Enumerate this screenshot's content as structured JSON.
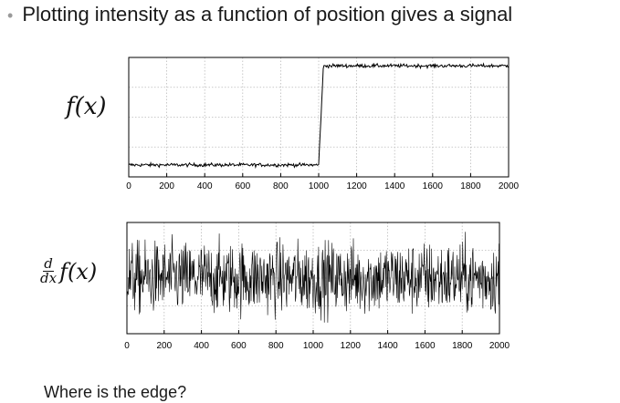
{
  "slide": {
    "bullet_text": "Plotting intensity as a function of position gives a signal",
    "question": "Where is the edge?"
  },
  "chart_data": [
    {
      "type": "line",
      "ylabel": "f(x)",
      "xlim": [
        0,
        2000
      ],
      "xticks": [
        "0",
        "200",
        "400",
        "600",
        "800",
        "1000",
        "1200",
        "1400",
        "1600",
        "1800",
        "2000"
      ],
      "grid": true,
      "series": [
        {
          "kind": "step",
          "edge_at": 1000,
          "low": 0.1,
          "high": 0.93,
          "noise": 0.025
        }
      ]
    },
    {
      "type": "line",
      "ylabel": "d/dx f(x)",
      "xlim": [
        0,
        2000
      ],
      "xticks": [
        "0",
        "200",
        "400",
        "600",
        "800",
        "1000",
        "1200",
        "1400",
        "1600",
        "1800",
        "2000"
      ],
      "grid": true,
      "series": [
        {
          "kind": "noise",
          "mean": 0.5,
          "amplitude": 0.48
        }
      ]
    }
  ]
}
